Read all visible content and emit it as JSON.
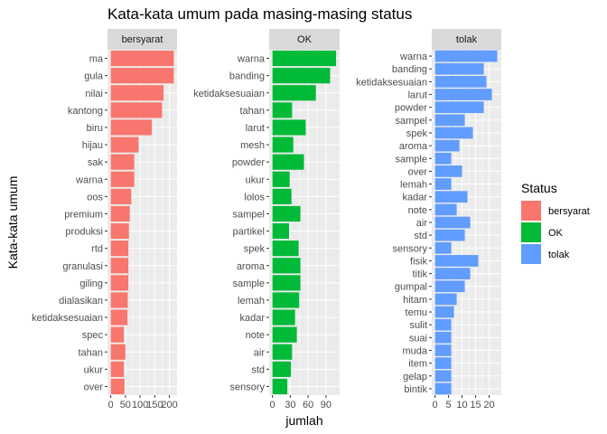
{
  "chart_data": {
    "type": "bar",
    "orientation": "horizontal",
    "title": "Kata-kata umum pada masing-masing status",
    "xlabel": "jumlah",
    "ylabel": "Kata-kata umum",
    "legend": {
      "title": "Status",
      "position": "right",
      "entries": [
        {
          "label": "bersyarat",
          "color": "#F8766D"
        },
        {
          "label": "OK",
          "color": "#00BA38"
        },
        {
          "label": "tolak",
          "color": "#619CFF"
        }
      ]
    },
    "grid": true,
    "panels": [
      {
        "strip": "bersyarat",
        "color": "#F8766D",
        "xlim": [
          -11,
          226
        ],
        "x_ticks": [
          0,
          50,
          100,
          150,
          200
        ],
        "x_tick_labels": [
          "0",
          "50",
          "100",
          "150",
          "200"
        ],
        "categories": [
          "ma",
          "gula",
          "nilai",
          "kantong",
          "biru",
          "hijau",
          "sak",
          "warna",
          "oos",
          "premium",
          "produksi",
          "rtd",
          "granulasi",
          "giling",
          "dialasikan",
          "ketidaksesuaian",
          "spec",
          "tahan",
          "ukur",
          "over"
        ],
        "values": [
          215,
          215,
          180,
          175,
          140,
          95,
          80,
          80,
          70,
          65,
          62,
          60,
          60,
          60,
          58,
          57,
          45,
          50,
          45,
          47
        ]
      },
      {
        "strip": "OK",
        "color": "#00BA38",
        "xlim": [
          -5.5,
          113
        ],
        "x_ticks": [
          0,
          30,
          60,
          90
        ],
        "x_tick_labels": [
          "0",
          "30",
          "60",
          "90"
        ],
        "categories": [
          "warna",
          "banding",
          "ketidaksesuaian",
          "tahan",
          "larut",
          "mesh",
          "powder",
          "ukur",
          "lolos",
          "sampel",
          "partikel",
          "spek",
          "aroma",
          "sample",
          "lemah",
          "kadar",
          "note",
          "air",
          "std",
          "sensory"
        ],
        "values": [
          107,
          97,
          73,
          33,
          56,
          35,
          53,
          29,
          32,
          47,
          28,
          44,
          47,
          47,
          45,
          38,
          41,
          33,
          31,
          25
        ]
      },
      {
        "strip": "tolak",
        "color": "#619CFF",
        "xlim": [
          -1.2,
          24.5
        ],
        "x_ticks": [
          0,
          5,
          10,
          15,
          20
        ],
        "x_tick_labels": [
          "0",
          "5",
          "10",
          "15",
          "20"
        ],
        "categories": [
          "warna",
          "banding",
          "ketidaksesuaian",
          "larut",
          "powder",
          "sampel",
          "spek",
          "aroma",
          "sample",
          "over",
          "lemah",
          "kadar",
          "note",
          "air",
          "std",
          "sensory",
          "fisik",
          "titik",
          "gumpal",
          "hitam",
          "temu",
          "sulit",
          "suai",
          "muda",
          "item",
          "gelap",
          "bintik"
        ],
        "values": [
          23,
          18,
          19,
          21,
          18,
          11,
          14,
          9,
          6,
          10,
          6,
          12,
          8,
          13,
          11,
          6,
          16,
          13,
          11,
          8,
          7,
          6,
          6,
          6,
          6,
          6,
          6
        ]
      }
    ]
  }
}
